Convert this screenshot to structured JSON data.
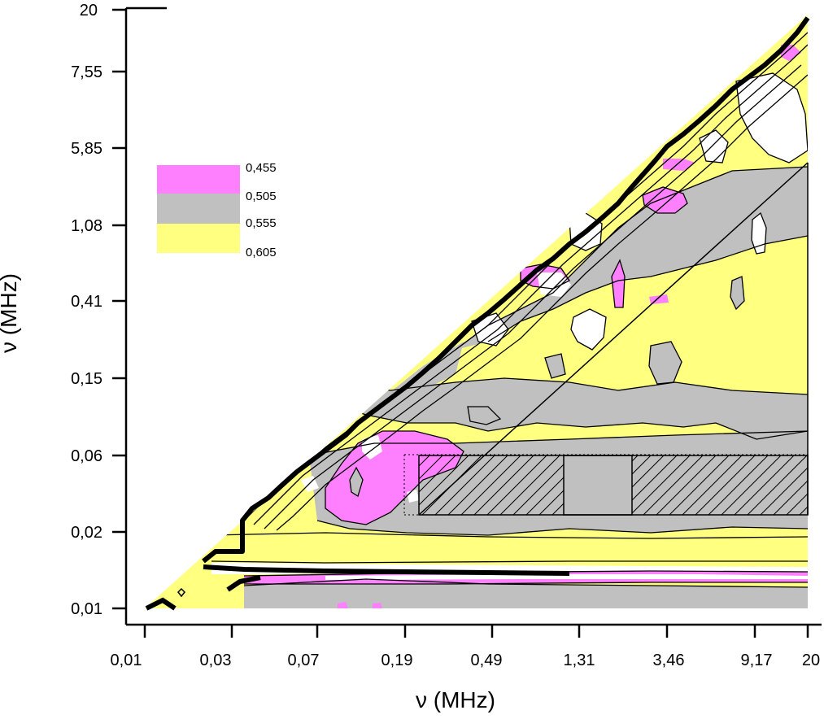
{
  "chart_data": {
    "type": "heatmap",
    "title": "",
    "xlabel": "ν (MHz)",
    "ylabel": "ν (MHz)",
    "x_ticks": [
      "0,01",
      "0,03",
      "0,07",
      "0,19",
      "0,49",
      "1,31",
      "3,46",
      "9,17",
      "20"
    ],
    "y_ticks": [
      "0,01",
      "0,02",
      "0,06",
      "0,15",
      "0,41",
      "1,08",
      "5,85",
      "7,55",
      "20"
    ],
    "legend": {
      "placement": "upper-left",
      "levels": [
        "0,455",
        "0,505",
        "0,555",
        "0,605"
      ],
      "colors": [
        "#ff80ff",
        "#c0c0c0",
        "#ffff80"
      ]
    },
    "colors": {
      "magenta": "#ff80ff",
      "gray": "#c0c0c0",
      "yellow": "#ffff80",
      "white": "#ffffff"
    },
    "triangular_domain": "upper-left region above diagonal is empty"
  }
}
